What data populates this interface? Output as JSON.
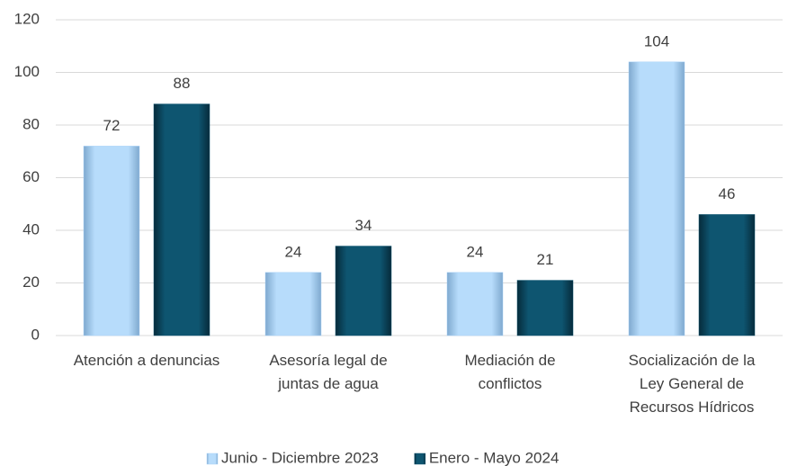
{
  "chart_data": {
    "type": "bar",
    "categories": [
      "Atención a denuncias",
      "Asesoría legal de\njuntas de agua",
      "Mediación de\nconflictos",
      "Socialización de la\nLey General de\nRecursos Hídricos"
    ],
    "series": [
      {
        "name": "Junio - Diciembre 2023",
        "color": "#a9d2f8",
        "values": [
          72,
          24,
          24,
          104
        ]
      },
      {
        "name": "Enero - Mayo 2024",
        "color": "#0e5570",
        "values": [
          88,
          34,
          21,
          46
        ]
      }
    ],
    "ylim": [
      0,
      120
    ],
    "yticks": [
      0,
      20,
      40,
      60,
      80,
      100,
      120
    ],
    "grid": true,
    "legend": "bottom"
  }
}
